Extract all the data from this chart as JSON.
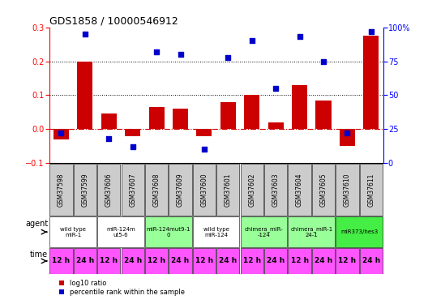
{
  "title": "GDS1858 / 10000546912",
  "samples": [
    "GSM37598",
    "GSM37599",
    "GSM37606",
    "GSM37607",
    "GSM37608",
    "GSM37609",
    "GSM37600",
    "GSM37601",
    "GSM37602",
    "GSM37603",
    "GSM37604",
    "GSM37605",
    "GSM37610",
    "GSM37611"
  ],
  "log10_ratio": [
    -0.03,
    0.2,
    0.045,
    -0.02,
    0.065,
    0.06,
    -0.02,
    0.08,
    0.1,
    0.02,
    0.13,
    0.085,
    -0.05,
    0.275
  ],
  "percentile_rank": [
    22,
    95,
    18,
    12,
    82,
    80,
    10,
    78,
    90,
    55,
    93,
    75,
    22,
    97
  ],
  "ylim_left": [
    -0.1,
    0.3
  ],
  "ylim_right": [
    0,
    100
  ],
  "yticks_left": [
    -0.1,
    0.0,
    0.1,
    0.2,
    0.3
  ],
  "yticks_right": [
    0,
    25,
    50,
    75,
    100
  ],
  "dotted_lines": [
    0.2,
    0.1
  ],
  "agent_groups": [
    {
      "label": "wild type\nmiR-1",
      "cols": [
        0,
        1
      ],
      "color": "#ffffff"
    },
    {
      "label": "miR-124m\nut5-6",
      "cols": [
        2,
        3
      ],
      "color": "#ffffff"
    },
    {
      "label": "miR-124mut9-1\n0",
      "cols": [
        4,
        5
      ],
      "color": "#99ff99"
    },
    {
      "label": "wild type\nmiR-124",
      "cols": [
        6,
        7
      ],
      "color": "#ffffff"
    },
    {
      "label": "chimera_miR-\n-124",
      "cols": [
        8,
        9
      ],
      "color": "#99ff99"
    },
    {
      "label": "chimera_miR-1\n24-1",
      "cols": [
        10,
        11
      ],
      "color": "#99ff99"
    },
    {
      "label": "miR373/hes3",
      "cols": [
        12,
        13
      ],
      "color": "#44ee44"
    }
  ],
  "time_labels": [
    "12 h",
    "24 h",
    "12 h",
    "24 h",
    "12 h",
    "24 h",
    "12 h",
    "24 h",
    "12 h",
    "24 h",
    "12 h",
    "24 h",
    "12 h",
    "24 h"
  ],
  "time_color": "#ff55ff",
  "bar_color": "#cc0000",
  "scatter_color": "#0000cc",
  "bg_color": "#ffffff",
  "sample_bg_color": "#cccccc",
  "zero_line_color": "#cc0000",
  "label_fontsize": 7,
  "sample_fontsize": 5.5,
  "agent_fontsize": 5.0,
  "time_fontsize": 6.5
}
